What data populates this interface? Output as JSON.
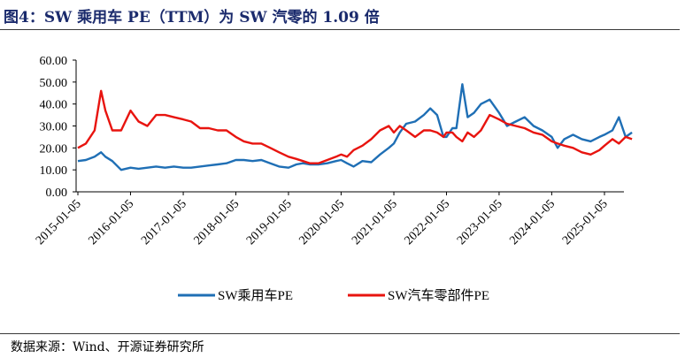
{
  "title": "图4：SW 乘用车 PE（TTM）为 SW 汽零的 1.09 倍",
  "source": "数据来源：Wind、开源证券研究所",
  "chart_data": {
    "type": "line",
    "title": "",
    "xlabel": "",
    "ylabel": "",
    "ylim": [
      0,
      60
    ],
    "y_ticks": [
      "60.00",
      "50.00",
      "40.00",
      "30.00",
      "20.00",
      "10.00",
      "0.00"
    ],
    "x_tick_labels": [
      "2015-01-05",
      "2016-01-05",
      "2017-01-05",
      "2018-01-05",
      "2019-01-05",
      "2020-01-05",
      "2021-01-05",
      "2022-01-05",
      "2023-01-05",
      "2024-01-05",
      "2025-01-05"
    ],
    "grid": false,
    "legend": "bottom",
    "x_dates": [
      "2015-01-05",
      "2015-03-01",
      "2015-05-01",
      "2015-06-15",
      "2015-07-15",
      "2015-09-01",
      "2015-11-01",
      "2016-01-05",
      "2016-03-01",
      "2016-05-01",
      "2016-07-01",
      "2016-09-01",
      "2016-11-01",
      "2017-01-05",
      "2017-03-01",
      "2017-05-01",
      "2017-07-01",
      "2017-09-01",
      "2017-11-01",
      "2018-01-05",
      "2018-03-01",
      "2018-05-01",
      "2018-07-01",
      "2018-09-01",
      "2018-11-01",
      "2019-01-05",
      "2019-03-01",
      "2019-04-15",
      "2019-06-01",
      "2019-08-01",
      "2019-10-01",
      "2019-12-01",
      "2020-01-05",
      "2020-02-15",
      "2020-04-01",
      "2020-06-01",
      "2020-08-01",
      "2020-10-01",
      "2020-12-01",
      "2021-01-05",
      "2021-02-15",
      "2021-04-01",
      "2021-06-01",
      "2021-08-01",
      "2021-09-15",
      "2021-11-01",
      "2021-12-15",
      "2022-01-05",
      "2022-02-15",
      "2022-03-15",
      "2022-04-25",
      "2022-06-01",
      "2022-07-15",
      "2022-09-01",
      "2022-11-01",
      "2023-01-05",
      "2023-03-01",
      "2023-05-01",
      "2023-07-01",
      "2023-09-01",
      "2023-11-01",
      "2024-01-05",
      "2024-02-15",
      "2024-04-01",
      "2024-06-01",
      "2024-08-01",
      "2024-10-01",
      "2024-12-01",
      "2025-01-05",
      "2025-03-01",
      "2025-04-15",
      "2025-06-01",
      "2025-07-15"
    ],
    "series": [
      {
        "name": "SW乘用车PE",
        "color": "#1f6fb5",
        "values": [
          14,
          14.5,
          16,
          18,
          16,
          14,
          10,
          11,
          10.5,
          11,
          11.5,
          11,
          11.5,
          11,
          11,
          11.5,
          12,
          12.5,
          13,
          14.5,
          14.5,
          14,
          14.5,
          13,
          11.5,
          11,
          12.5,
          13,
          12.5,
          12.5,
          13,
          14,
          14.5,
          13,
          11.5,
          14,
          13.5,
          17,
          20,
          22,
          27,
          31,
          32,
          35,
          38,
          35,
          25,
          25,
          29,
          29,
          49,
          34,
          36,
          40,
          42,
          36,
          30,
          32,
          34,
          30,
          28,
          25,
          20,
          24,
          26,
          24,
          23,
          25,
          26,
          28,
          34,
          25,
          27
        ]
      },
      {
        "name": "SW汽车零部件PE",
        "color": "#e8140f",
        "values": [
          20,
          22,
          28,
          46,
          37,
          28,
          28,
          37,
          32,
          30,
          35,
          35,
          34,
          33,
          32,
          29,
          29,
          28,
          28,
          25,
          23,
          22,
          22,
          20,
          18,
          16,
          15,
          14,
          13,
          13,
          14.5,
          16,
          17,
          16,
          19,
          21,
          24,
          28,
          30,
          27,
          30,
          28,
          25,
          28,
          28,
          27,
          25,
          27,
          27,
          25,
          23,
          27,
          25,
          28,
          35,
          33,
          31,
          30,
          29,
          27,
          26,
          23,
          22,
          21,
          20,
          18,
          17,
          19,
          21,
          24,
          22,
          25,
          24
        ]
      }
    ]
  }
}
